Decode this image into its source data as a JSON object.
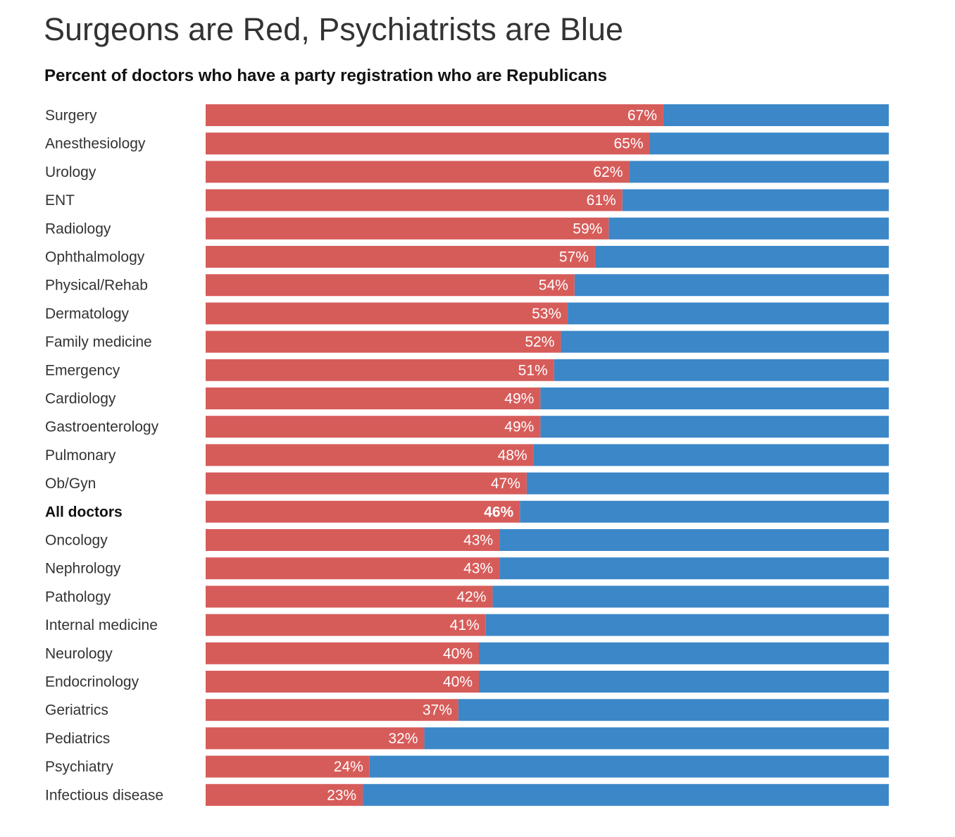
{
  "header": {
    "title": "Surgeons are Red, Psychiatrists are Blue",
    "subtitle": "Percent of doctors who have a party registration who are Republicans"
  },
  "chart_data": {
    "type": "bar",
    "orientation": "horizontal",
    "stacked": true,
    "title": "Surgeons are Red, Psychiatrists are Blue",
    "subtitle": "Percent of doctors who have a party registration who are Republicans",
    "xlim": [
      0,
      100
    ],
    "grid": false,
    "legend": "none",
    "colors": {
      "republican": "#d65c5a",
      "democrat": "#3b87c8"
    },
    "categories": [
      "Surgery",
      "Anesthesiology",
      "Urology",
      "ENT",
      "Radiology",
      "Ophthalmology",
      "Physical/Rehab",
      "Dermatology",
      "Family medicine",
      "Emergency",
      "Cardiology",
      "Gastroenterology",
      "Pulmonary",
      "Ob/Gyn",
      "All doctors",
      "Oncology",
      "Nephrology",
      "Pathology",
      "Internal medicine",
      "Neurology",
      "Endocrinology",
      "Geriatrics",
      "Pediatrics",
      "Psychiatry",
      "Infectious disease"
    ],
    "values": [
      67,
      65,
      62,
      61,
      59,
      57,
      54,
      53,
      52,
      51,
      49,
      49,
      48,
      47,
      46,
      43,
      43,
      42,
      41,
      40,
      40,
      37,
      32,
      24,
      23
    ],
    "labels": [
      "67%",
      "65%",
      "62%",
      "61%",
      "59%",
      "57%",
      "54%",
      "53%",
      "52%",
      "51%",
      "49%",
      "49%",
      "48%",
      "47%",
      "46%",
      "43%",
      "43%",
      "42%",
      "41%",
      "40%",
      "40%",
      "37%",
      "32%",
      "24%",
      "23%"
    ],
    "highlight_category": "All doctors"
  }
}
